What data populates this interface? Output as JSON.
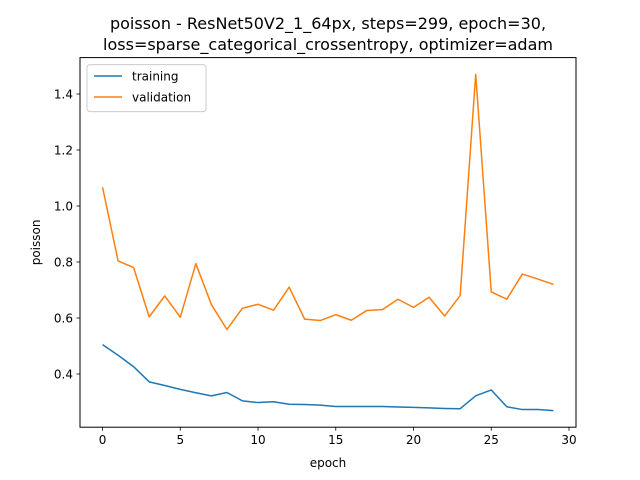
{
  "chart_data": {
    "type": "line",
    "title_line1": "poisson - ResNet50V2_1_64px, steps=299, epoch=30,",
    "title_line2": "loss=sparse_categorical_crossentropy, optimizer=adam",
    "xlabel": "epoch",
    "ylabel": "poisson",
    "xlim": [
      -1.45,
      30.45
    ],
    "ylim": [
      0.21,
      1.53
    ],
    "xticks": [
      0,
      5,
      10,
      15,
      20,
      25,
      30
    ],
    "yticks": [
      0.4,
      0.6,
      0.8,
      1.0,
      1.2,
      1.4
    ],
    "ytick_labels": [
      "0.4",
      "0.6",
      "0.8",
      "1.0",
      "1.2",
      "1.4"
    ],
    "x": [
      0,
      1,
      2,
      3,
      4,
      5,
      6,
      7,
      8,
      9,
      10,
      11,
      12,
      13,
      14,
      15,
      16,
      17,
      18,
      19,
      20,
      21,
      22,
      23,
      24,
      25,
      26,
      27,
      28,
      29
    ],
    "series": [
      {
        "name": "training",
        "color": "#1f77b4",
        "values": [
          0.505,
          0.467,
          0.426,
          0.372,
          0.359,
          0.345,
          0.333,
          0.322,
          0.334,
          0.304,
          0.298,
          0.301,
          0.292,
          0.291,
          0.289,
          0.284,
          0.284,
          0.284,
          0.284,
          0.282,
          0.281,
          0.279,
          0.277,
          0.276,
          0.322,
          0.343,
          0.283,
          0.273,
          0.273,
          0.269
        ]
      },
      {
        "name": "validation",
        "color": "#ff7f0e",
        "values": [
          1.067,
          0.804,
          0.78,
          0.604,
          0.679,
          0.603,
          0.794,
          0.648,
          0.559,
          0.635,
          0.649,
          0.628,
          0.71,
          0.596,
          0.591,
          0.612,
          0.592,
          0.627,
          0.63,
          0.667,
          0.638,
          0.674,
          0.607,
          0.68,
          1.47,
          0.693,
          0.667,
          0.757,
          0.739,
          0.72
        ]
      }
    ],
    "legend_position": "upper-left",
    "grid": false
  }
}
